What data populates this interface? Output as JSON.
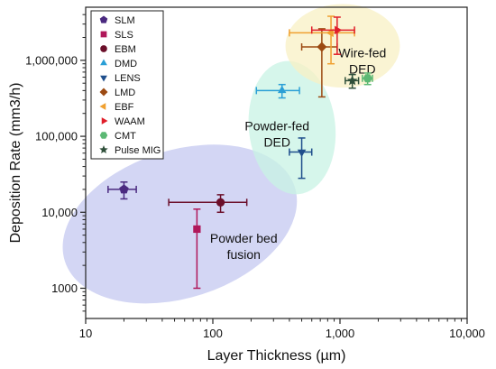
{
  "chart_data": {
    "type": "scatter",
    "xlabel": "Layer Thickness (µm)",
    "ylabel": "Deposition Rate (mm3/h)",
    "x_scale": "log",
    "y_scale": "log",
    "xlim": [
      10,
      10000
    ],
    "ylim": [
      400,
      5000000
    ],
    "x_ticks": [
      10,
      100,
      1000,
      10000
    ],
    "x_tick_labels": [
      "10",
      "100",
      "1,000",
      "10,000"
    ],
    "y_ticks": [
      1000,
      10000,
      100000,
      1000000
    ],
    "y_tick_labels": [
      "1000",
      "10,000",
      "100,000",
      "1,000,000"
    ],
    "grid": false,
    "legend_position": "top-left",
    "series": [
      {
        "name": "SLM",
        "marker": "pentagon",
        "color": "#4b2a80",
        "x": 20,
        "y": 20000,
        "x_err": [
          15,
          25
        ],
        "y_err": [
          15000,
          25000
        ]
      },
      {
        "name": "SLS",
        "marker": "square",
        "color": "#b0185a",
        "x": 75,
        "y": 6000,
        "x_err": [
          72,
          78
        ],
        "y_err": [
          1000,
          11000
        ]
      },
      {
        "name": "EBM",
        "marker": "circle",
        "color": "#6b0f2a",
        "x": 115,
        "y": 13500,
        "x_err": [
          45,
          185
        ],
        "y_err": [
          10000,
          17000
        ]
      },
      {
        "name": "DMD",
        "marker": "triangle-up",
        "color": "#2a9fd6",
        "x": 350,
        "y": 400000,
        "x_err": [
          220,
          480
        ],
        "y_err": [
          320000,
          480000
        ]
      },
      {
        "name": "LENS",
        "marker": "triangle-down",
        "color": "#1f4e8c",
        "x": 500,
        "y": 62000,
        "x_err": [
          400,
          600
        ],
        "y_err": [
          28000,
          95000
        ]
      },
      {
        "name": "LMD",
        "marker": "diamond",
        "color": "#9c4a12",
        "x": 720,
        "y": 1500000,
        "x_err": [
          500,
          950
        ],
        "y_err": [
          330000,
          2600000
        ]
      },
      {
        "name": "EBF",
        "marker": "triangle-left",
        "color": "#f0a030",
        "x": 850,
        "y": 2300000,
        "x_err": [
          400,
          1300
        ],
        "y_err": [
          900000,
          3800000
        ]
      },
      {
        "name": "WAAM",
        "marker": "triangle-right",
        "color": "#e01e2a",
        "x": 950,
        "y": 2500000,
        "x_err": [
          600,
          1300
        ],
        "y_err": [
          1200000,
          3700000
        ]
      },
      {
        "name": "CMT",
        "marker": "hexagon",
        "color": "#5cb874",
        "x": 1650,
        "y": 580000,
        "x_err": [
          1500,
          1800
        ],
        "y_err": [
          480000,
          680000
        ]
      },
      {
        "name": "Pulse MIG",
        "marker": "star",
        "color": "#2f4f3a",
        "x": 1250,
        "y": 540000,
        "x_err": [
          1100,
          1400
        ],
        "y_err": [
          430000,
          650000
        ]
      }
    ],
    "regions": [
      {
        "label_lines": [
          "Powder bed",
          "fusion"
        ],
        "color": "#c4c8f0",
        "center": [
          55,
          7000
        ],
        "rx_decades": 0.95,
        "ry_decades": 0.97,
        "angle": -18,
        "label_at": [
          175,
          4000
        ]
      },
      {
        "label_lines": [
          "Powder-fed",
          "DED"
        ],
        "color": "#c8f3e4",
        "center": [
          420,
          130000
        ],
        "rx_decades": 0.34,
        "ry_decades": 0.88,
        "angle": -6,
        "label_at": [
          320,
          120000
        ]
      },
      {
        "label_lines": [
          "Wire-fed",
          "DED"
        ],
        "color": "#f8f0c4",
        "center": [
          1050,
          1550000
        ],
        "rx_decades": 0.45,
        "ry_decades": 0.55,
        "angle": 0,
        "label_at": [
          1500,
          1100000
        ]
      }
    ]
  }
}
